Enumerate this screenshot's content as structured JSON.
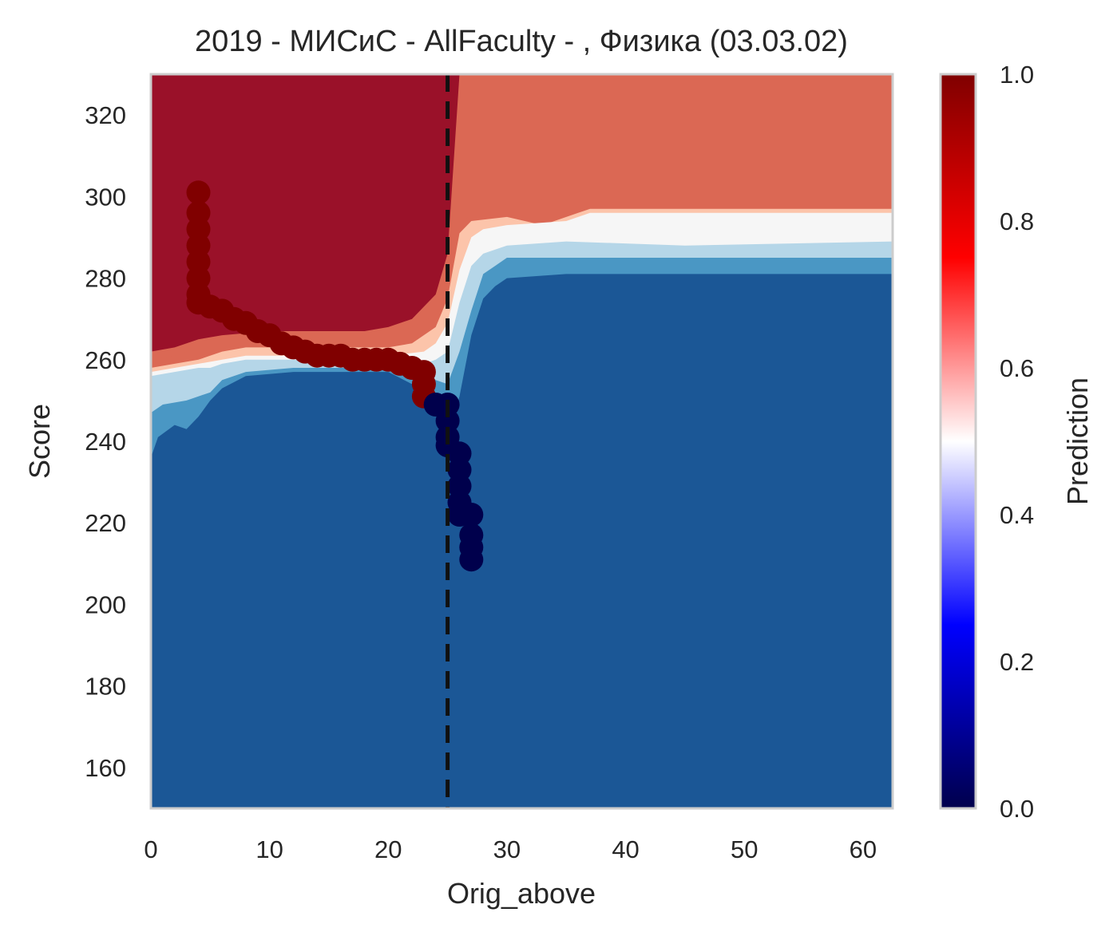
{
  "chart_data": {
    "type": "heatmap",
    "title": "2019 - МИСиС - AllFaculty - , Физика (03.03.02)",
    "xlabel": "Orig_above",
    "ylabel": "Score",
    "xlim": [
      0,
      62.5
    ],
    "ylim": [
      150,
      330
    ],
    "x_ticks": [
      0,
      10,
      20,
      30,
      40,
      50,
      60
    ],
    "y_ticks": [
      160,
      180,
      200,
      220,
      240,
      260,
      280,
      300,
      320
    ],
    "grid": false,
    "threshold_line": {
      "x": 25,
      "style": "dashed"
    },
    "colorbar": {
      "label": "Prediction",
      "range": [
        0,
        1
      ],
      "ticks": [
        "0.0",
        "0.2",
        "0.4",
        "0.6",
        "0.8",
        "1.0"
      ],
      "colormap": "seismic"
    },
    "contour_levels": [
      {
        "level_index": 0,
        "color": "#1b5796"
      },
      {
        "level_index": 1,
        "color": "#4a97c4"
      },
      {
        "level_index": 2,
        "color": "#b5d6e8"
      },
      {
        "level_index": 3,
        "color": "#f6f6f6"
      },
      {
        "level_index": 4,
        "color": "#fcc4aa"
      },
      {
        "level_index": 5,
        "color": "#db6854"
      },
      {
        "level_index": 6,
        "color": "#9a1129"
      }
    ],
    "series": [
      {
        "prediction": 1.0,
        "color": "#800000",
        "points": [
          [
            4,
            301
          ],
          [
            4,
            296
          ],
          [
            4,
            292
          ],
          [
            4,
            288
          ],
          [
            4,
            284
          ],
          [
            4,
            280
          ],
          [
            4,
            276
          ],
          [
            4,
            274
          ],
          [
            5,
            273
          ],
          [
            6,
            272
          ],
          [
            7,
            270
          ],
          [
            8,
            269
          ],
          [
            9,
            267
          ],
          [
            10,
            266
          ],
          [
            11,
            264
          ],
          [
            12,
            263
          ],
          [
            13,
            262
          ],
          [
            14,
            261
          ],
          [
            15,
            261
          ],
          [
            16,
            261
          ],
          [
            17,
            260
          ],
          [
            18,
            260
          ],
          [
            19,
            260
          ],
          [
            20,
            260
          ],
          [
            21,
            259
          ],
          [
            22,
            258
          ],
          [
            23,
            257
          ],
          [
            23,
            254
          ],
          [
            23,
            251
          ]
        ]
      },
      {
        "prediction": 0.0,
        "color": "#00004c",
        "points": [
          [
            24,
            249
          ],
          [
            25,
            249
          ],
          [
            25,
            245
          ],
          [
            25,
            241
          ],
          [
            25,
            239
          ],
          [
            26,
            237
          ],
          [
            26,
            233
          ],
          [
            26,
            229
          ],
          [
            26,
            225
          ],
          [
            26,
            222
          ],
          [
            27,
            222
          ],
          [
            27,
            217
          ],
          [
            27,
            214
          ],
          [
            27,
            211
          ]
        ]
      }
    ]
  }
}
